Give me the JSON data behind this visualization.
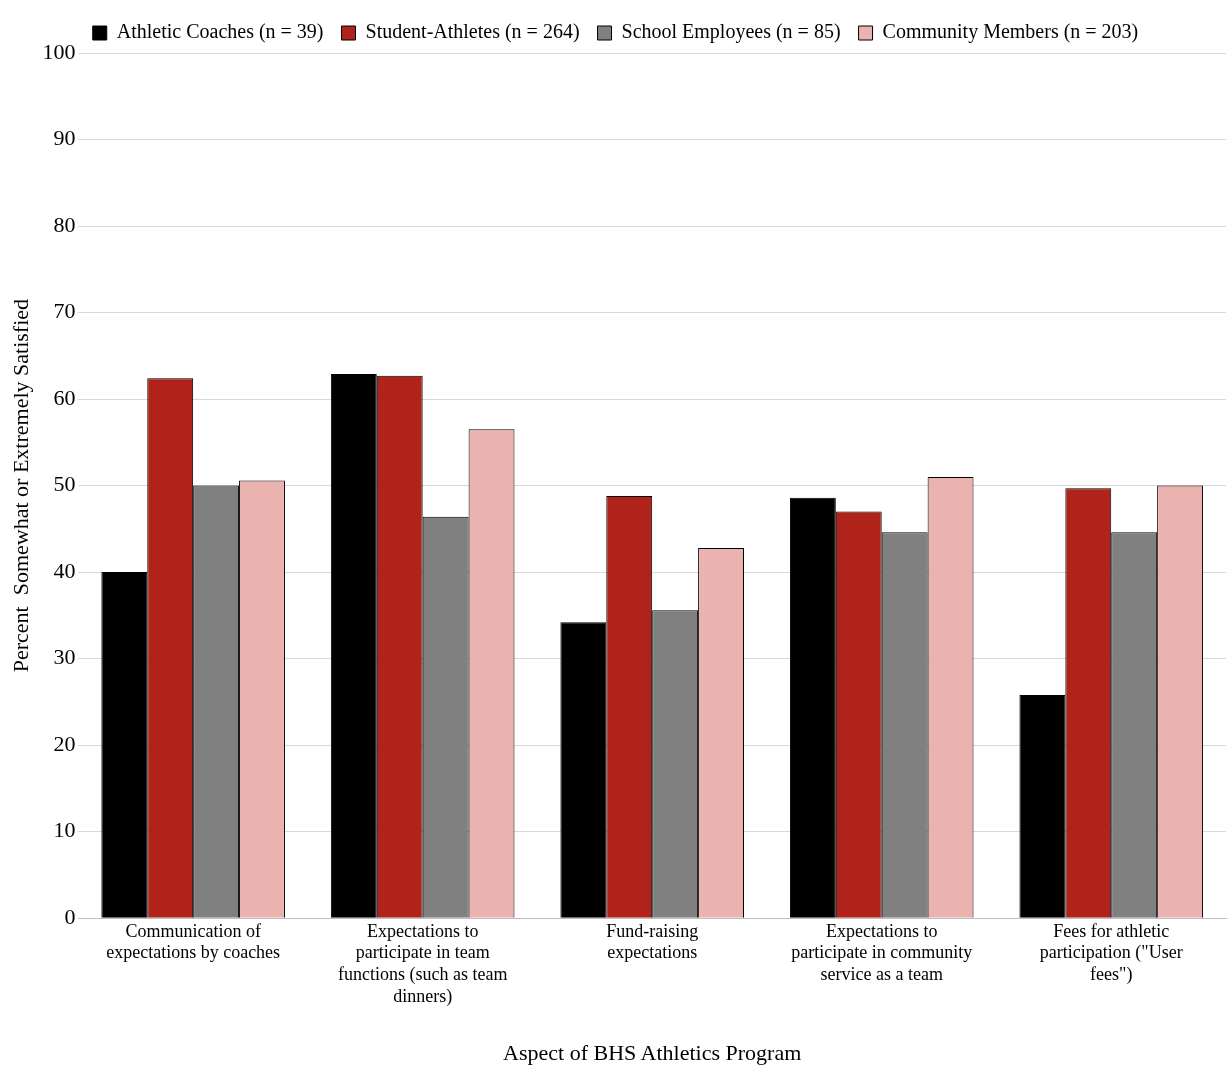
{
  "chart_data": {
    "type": "bar",
    "xlabel": "Aspect of BHS Athletics Program",
    "ylabel": "Percent  Somewhat or Extremely Satisfied",
    "categories": [
      "Communication of expectations by coaches",
      "Expectations to participate in team functions (such as team dinners)",
      "Fund-raising expectations",
      "Expectations to participate in community service as a team",
      "Fees for athletic participation (\"User fees\")"
    ],
    "series": [
      {
        "name": "Athletic Coaches (n = 39)",
        "color": "#000000",
        "values": [
          40,
          62.9,
          34.2,
          48.6,
          25.8
        ]
      },
      {
        "name": "Student-Athletes (n = 264)",
        "color": "#b0231b",
        "values": [
          62.4,
          62.7,
          48.8,
          47,
          49.7
        ]
      },
      {
        "name": "School Employees (n = 85)",
        "color": "#808080",
        "values": [
          50,
          46.4,
          35.6,
          44.6,
          44.6
        ]
      },
      {
        "name": "Community Members (n = 203)",
        "color": "#eab3b0",
        "values": [
          50.6,
          56.5,
          42.8,
          51,
          50
        ]
      }
    ],
    "ylim": [
      0,
      100
    ],
    "yticks": [
      0,
      10,
      20,
      30,
      40,
      50,
      60,
      70,
      80,
      90,
      100
    ],
    "grid": "y",
    "legend": "top"
  }
}
